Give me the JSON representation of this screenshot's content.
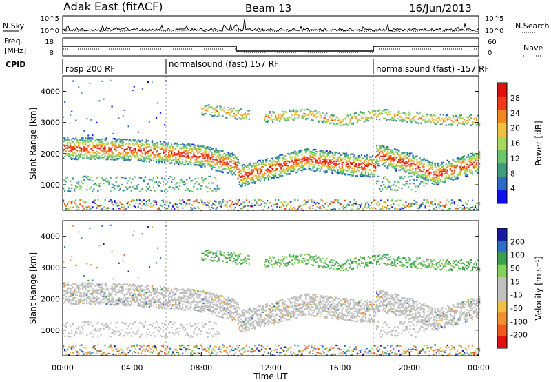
{
  "header": {
    "station": "Adak East (fitACF)",
    "beam": "Beam 13",
    "date": "16/Jun/2013"
  },
  "top_panels": {
    "nsky_label": "N.Sky",
    "nsky_ticks": [
      "10^5",
      "10^0"
    ],
    "nsearch_label": "N.Search",
    "freq_label": "Freq.",
    "freq_unit": "[MHz]",
    "freq_ticks": [
      "18",
      "8"
    ],
    "nave_label": "Nave",
    "nave_ticks": [
      "60",
      "0"
    ],
    "cpid_label": "CPID",
    "cpid_segments": [
      {
        "label": "rbsp 200 RF",
        "start_hour": 0
      },
      {
        "label": "normalsound (fast) 157 RF",
        "start_hour": 6
      },
      {
        "label": "normalsound (fast) -157 RF",
        "start_hour": 18
      }
    ]
  },
  "colors": {
    "power_scale": [
      "#1010ee",
      "#2b6bc4",
      "#3f9c7c",
      "#6cc46c",
      "#a8d85c",
      "#f0c040",
      "#f08a20",
      "#ee3a1a",
      "#e01010"
    ],
    "velocity_scale": [
      "#1a1aa0",
      "#2e6fc4",
      "#3aa050",
      "#86d05e",
      "#c0c0c0",
      "#c0c0c0",
      "#f0c040",
      "#f09030",
      "#f05a20",
      "#e01010"
    ],
    "ground_gray": "#bebebe"
  },
  "chart_data": [
    {
      "type": "heatmap",
      "title": "",
      "xlabel": "",
      "ylabel": "Slant Range [km]",
      "xlim": [
        0,
        24
      ],
      "ylim": [
        180,
        4500
      ],
      "x_ticks": [
        "00:00",
        "04:00",
        "08:00",
        "12:00",
        "16:00",
        "20:00",
        "00:00"
      ],
      "y_ticks": [
        "1000",
        "2000",
        "3000",
        "4000"
      ],
      "colorbar": {
        "label": "Power [dB]",
        "ticks": [
          "28",
          "24",
          "20",
          "16",
          "12",
          "8",
          "4"
        ],
        "range": [
          0,
          30
        ]
      },
      "echo_bands": [
        {
          "name": "main F-region band",
          "start_hour": 0,
          "end_hour": 24,
          "range_km_at_hours": [
            [
              0,
              2200
            ],
            [
              4,
              2150
            ],
            [
              6,
              2050
            ],
            [
              8,
              1950
            ],
            [
              10,
              1650
            ],
            [
              10.2,
              1300
            ],
            [
              12,
              1550
            ],
            [
              14,
              1850
            ],
            [
              16,
              1700
            ],
            [
              18,
              1600
            ],
            [
              18.05,
              2000
            ],
            [
              20,
              1700
            ],
            [
              21.5,
              1350
            ],
            [
              23,
              1600
            ],
            [
              24,
              1750
            ]
          ],
          "peak_power_db": 28
        },
        {
          "name": "upper band",
          "start_hour": 8,
          "end_hour": 24,
          "range_km_at_hours": [
            [
              8,
              3450
            ],
            [
              10,
              3300
            ],
            [
              12,
              3200
            ],
            [
              14,
              3300
            ],
            [
              16,
              3050
            ],
            [
              18,
              3300
            ],
            [
              20,
              3200
            ],
            [
              22,
              3100
            ]
          ],
          "peak_power_db": 22
        }
      ]
    },
    {
      "type": "heatmap",
      "title": "",
      "xlabel": "Time UT",
      "ylabel": "Slant Range [km]",
      "xlim": [
        0,
        24
      ],
      "ylim": [
        180,
        4500
      ],
      "x_ticks": [
        "00:00",
        "04:00",
        "08:00",
        "12:00",
        "16:00",
        "20:00",
        "00:00"
      ],
      "y_ticks": [
        "1000",
        "2000",
        "3000",
        "4000"
      ],
      "colorbar": {
        "label": "Velocity [m s⁻¹]",
        "ticks": [
          "200",
          "100",
          "50",
          "15",
          "-15",
          "-50",
          "-100",
          "-200"
        ],
        "range": [
          -250,
          250
        ]
      },
      "echo_bands": [
        {
          "name": "ground scatter band",
          "start_hour": 0,
          "end_hour": 24,
          "velocity_ms": 0
        },
        {
          "name": "upper band",
          "start_hour": 8,
          "end_hour": 24,
          "velocity_ms": 45
        }
      ]
    }
  ]
}
